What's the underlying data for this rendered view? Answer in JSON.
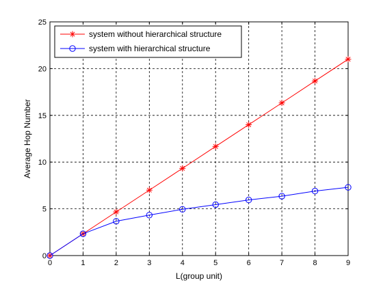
{
  "chart_data": {
    "type": "line",
    "title": "",
    "xlabel": "L(group unit)",
    "ylabel": "Average Hop Number",
    "xlim": [
      0,
      9
    ],
    "ylim": [
      0,
      25
    ],
    "xticks": [
      0,
      1,
      2,
      3,
      4,
      5,
      6,
      7,
      8,
      9
    ],
    "yticks": [
      0,
      5,
      10,
      15,
      20,
      25
    ],
    "grid": true,
    "legend_position": "top-left",
    "x": [
      0,
      1,
      2,
      3,
      4,
      5,
      6,
      7,
      8,
      9
    ],
    "series": [
      {
        "name": "system without hierarchical structure",
        "color": "#ff0000",
        "marker": "asterisk",
        "values": [
          0,
          2.33,
          4.67,
          7.0,
          9.33,
          11.67,
          14.0,
          16.33,
          18.67,
          21.0
        ]
      },
      {
        "name": "system with hierarchical structure",
        "color": "#0000ff",
        "marker": "circle",
        "values": [
          0,
          2.33,
          3.67,
          4.33,
          4.95,
          5.45,
          5.95,
          6.35,
          6.9,
          7.3
        ]
      }
    ]
  }
}
